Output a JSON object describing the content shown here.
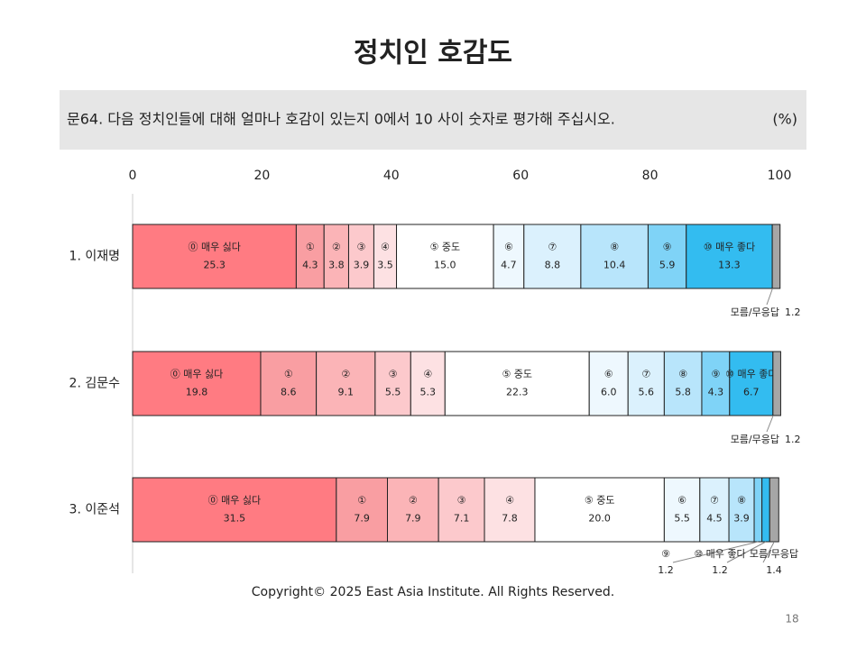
{
  "chart_data": {
    "type": "stacked_barh",
    "title": "정치인 호감도",
    "subtitle": "문64. 다음 정치인들에 대해 얼마나 호감이 있는지 0에서 10 사이 숫자로 평가해 주십시오.",
    "unit": "(%)",
    "footer": "Copyright© 2025 East Asia Institute. All Rights Reserved.",
    "page_number": "18",
    "categories": [
      "1. 이재명",
      "2. 김문수",
      "3. 이준석"
    ],
    "xlim": [
      0,
      100
    ],
    "xticks": [
      0,
      20,
      40,
      60,
      80,
      100
    ],
    "series": [
      {
        "name": "⓪ 매우 싫다",
        "color": "#ff7b82",
        "values": [
          25.3,
          19.8,
          31.5
        ],
        "value_labels": [
          "25.3",
          "19.8",
          "31.5"
        ]
      },
      {
        "name": "①",
        "color": "#f99ea2",
        "values": [
          4.3,
          8.6,
          7.9
        ],
        "value_labels": [
          "4.3",
          "8.6",
          "7.9"
        ]
      },
      {
        "name": "②",
        "color": "#fbb4b7",
        "values": [
          3.8,
          9.1,
          7.9
        ],
        "value_labels": [
          "3.8",
          "9.1",
          "7.9"
        ]
      },
      {
        "name": "③",
        "color": "#fcc9cc",
        "values": [
          3.9,
          5.5,
          7.1
        ],
        "value_labels": [
          "3.9",
          "5.5",
          "7.1"
        ]
      },
      {
        "name": "④",
        "color": "#fde1e3",
        "values": [
          3.5,
          5.3,
          7.8
        ],
        "value_labels": [
          "3.5",
          "5.3",
          "7.8"
        ]
      },
      {
        "name": "⑤ 중도",
        "color": "#ffffff",
        "values": [
          15.0,
          22.3,
          20.0
        ],
        "value_labels": [
          "15.0",
          "22.3",
          "20.0"
        ]
      },
      {
        "name": "⑥",
        "color": "#eef8fe",
        "values": [
          4.7,
          6.0,
          5.5
        ],
        "value_labels": [
          "4.7",
          "6.0",
          "5.5"
        ]
      },
      {
        "name": "⑦",
        "color": "#dbf1fd",
        "values": [
          8.8,
          5.6,
          4.5
        ],
        "value_labels": [
          "8.8",
          "5.6",
          "4.5"
        ]
      },
      {
        "name": "⑧",
        "color": "#b8e5fb",
        "values": [
          10.4,
          5.8,
          3.9
        ],
        "value_labels": [
          "10.4",
          "5.8",
          "3.9"
        ]
      },
      {
        "name": "⑨",
        "color": "#7fd3f7",
        "values": [
          5.9,
          4.3,
          1.2
        ],
        "value_labels": [
          "5.9",
          "4.3",
          "1.2"
        ]
      },
      {
        "name": "⑩ 매우 좋다",
        "color": "#33bcf0",
        "values": [
          13.3,
          6.7,
          1.2
        ],
        "value_labels": [
          "13.3",
          "6.7",
          "1.2"
        ]
      },
      {
        "name": "모름/무응답",
        "color": "#a6a6a6",
        "values": [
          1.2,
          1.2,
          1.4
        ],
        "value_labels": [
          "1.2",
          "1.2",
          "1.4"
        ]
      }
    ]
  }
}
